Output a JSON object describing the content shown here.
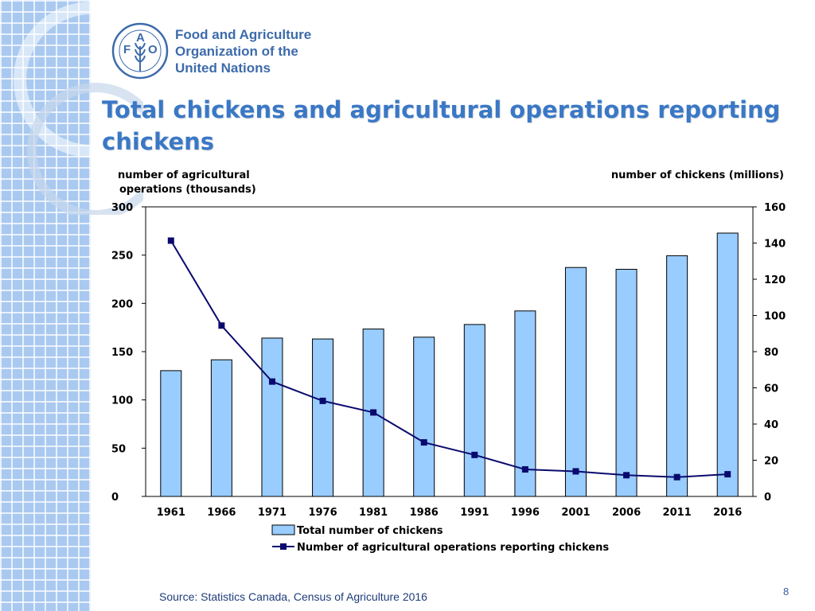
{
  "organization": {
    "lines": [
      "Food and Agriculture",
      "Organization of the",
      "United Nations"
    ],
    "logo_letters": [
      "F",
      "A",
      "O"
    ]
  },
  "slide": {
    "title": "Total chickens and agricultural operations reporting chickens",
    "source": "Source: Statistics Canada, Census of Agriculture 2016",
    "page_number": "8"
  },
  "colors": {
    "bar_fill": "#99ccff",
    "line": "#0a0a6e",
    "title": "#3a78c6",
    "band": "#a9c9f0"
  },
  "chart_data": {
    "type": "bar+line",
    "categories": [
      "1961",
      "1966",
      "1971",
      "1976",
      "1981",
      "1986",
      "1991",
      "1996",
      "2001",
      "2006",
      "2011",
      "2016"
    ],
    "ylabel_left": "number of agricultural operations (thousands)",
    "ylabel_right": "number of chickens (millions)",
    "ylim_left": [
      0,
      300
    ],
    "yticks_left": [
      0,
      50,
      100,
      150,
      200,
      250,
      300
    ],
    "ylim_right": [
      0,
      160
    ],
    "yticks_right": [
      0,
      20,
      40,
      60,
      80,
      100,
      120,
      140,
      160
    ],
    "series": [
      {
        "name": "Total number of chickens",
        "kind": "bar",
        "axis": "right",
        "values": [
          69.5,
          75.5,
          87.5,
          87.0,
          92.5,
          88.0,
          95.0,
          102.5,
          126.5,
          125.5,
          133.0,
          145.5
        ]
      },
      {
        "name": "Number of agricultural operations reporting chickens",
        "kind": "line",
        "axis": "left",
        "values": [
          265,
          177,
          119,
          99,
          87,
          56,
          43,
          28,
          26,
          22,
          20,
          23
        ]
      }
    ],
    "grid": false,
    "legend_position": "bottom"
  }
}
